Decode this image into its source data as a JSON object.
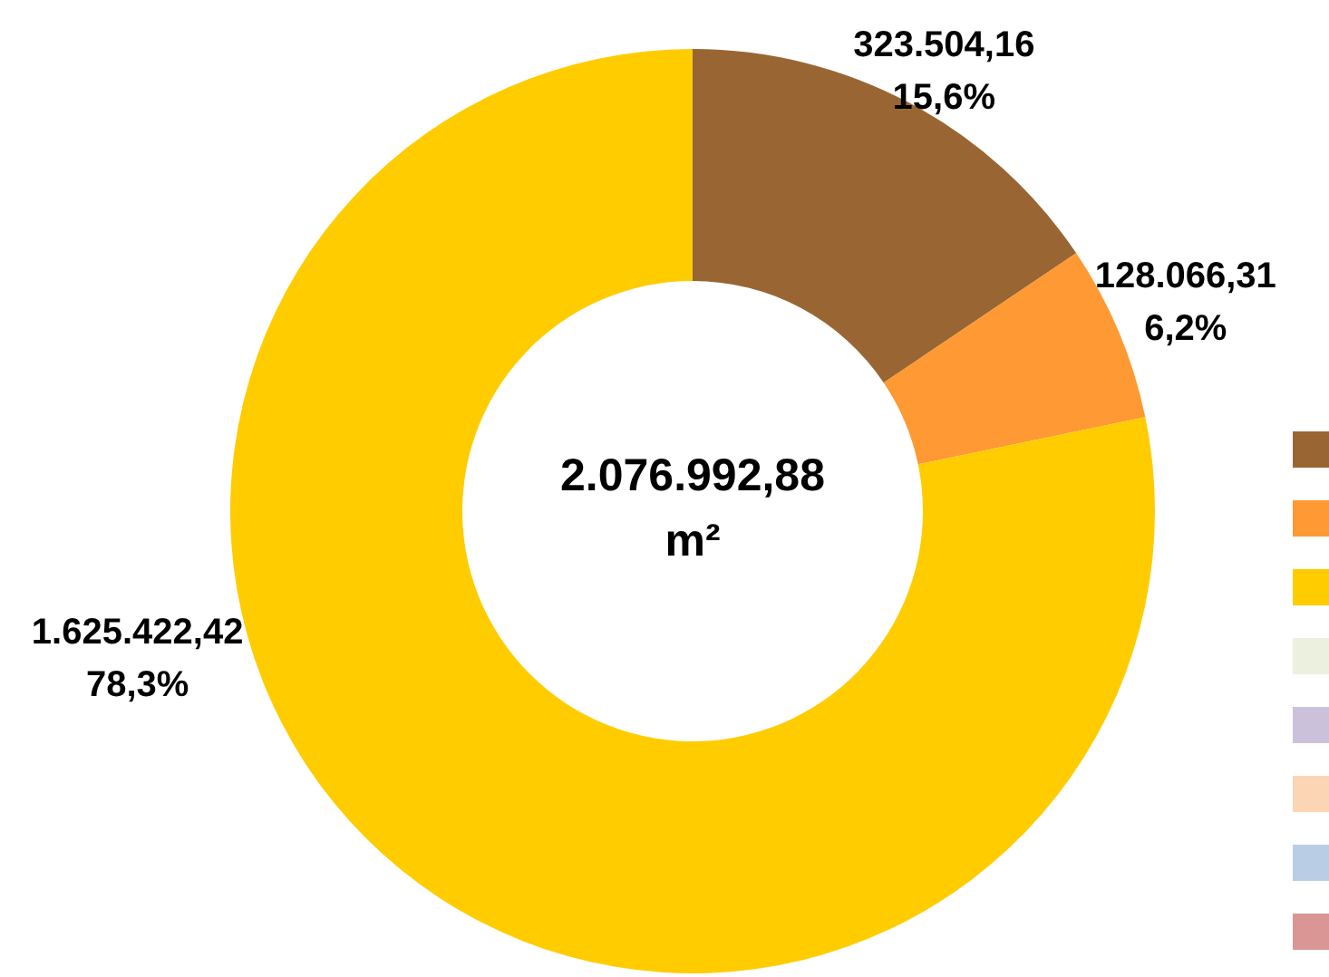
{
  "chart_data": {
    "type": "donut",
    "categories": [
      null,
      null,
      null,
      null,
      null,
      null,
      null,
      null
    ],
    "values": [
      323504.16,
      128066.31,
      1625422.42,
      0,
      0,
      0,
      0,
      0
    ],
    "colors": [
      "#996633",
      "#ff9933",
      "#ffcc00",
      "#ebf1de",
      "#ccc1da",
      "#fcd5b5",
      "#b9cde5",
      "#d99694"
    ],
    "value_labels": [
      "323.504,16\n15,6%",
      "128.066,31\n6,2%",
      "1.625.422,42\n78,3%",
      null,
      null,
      null,
      null,
      null
    ],
    "annotations": [
      "2.076.992,88\nm²"
    ]
  }
}
